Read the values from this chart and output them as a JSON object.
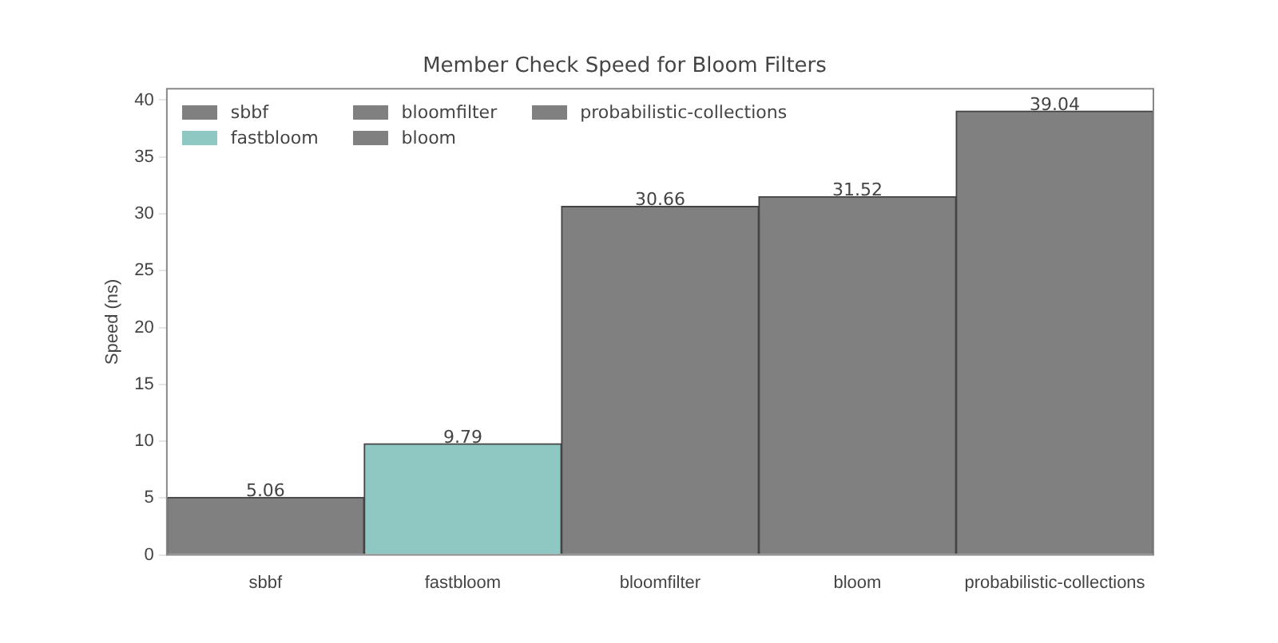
{
  "chart_data": {
    "type": "bar",
    "title": "Member Check Speed for Bloom Filters",
    "ylabel": "Speed (ns)",
    "categories": [
      "sbbf",
      "fastbloom",
      "bloomfilter",
      "bloom",
      "probabilistic-collections"
    ],
    "series": [
      {
        "name": "sbbf",
        "color": "#808080",
        "values": [
          5.06,
          null,
          null,
          null,
          null
        ]
      },
      {
        "name": "fastbloom",
        "color": "#8fc7c2",
        "values": [
          null,
          9.79,
          null,
          null,
          null
        ]
      },
      {
        "name": "bloomfilter",
        "color": "#808080",
        "values": [
          null,
          null,
          30.66,
          null,
          null
        ]
      },
      {
        "name": "bloom",
        "color": "#808080",
        "values": [
          null,
          null,
          null,
          31.52,
          null
        ]
      },
      {
        "name": "probabilistic-collections",
        "color": "#808080",
        "values": [
          null,
          null,
          null,
          null,
          39.04
        ]
      }
    ],
    "ylim": [
      0,
      41
    ],
    "yticks": [
      0,
      5,
      10,
      15,
      20,
      25,
      30,
      35,
      40
    ],
    "grid": false,
    "legend": "top left",
    "data_labels": true
  }
}
